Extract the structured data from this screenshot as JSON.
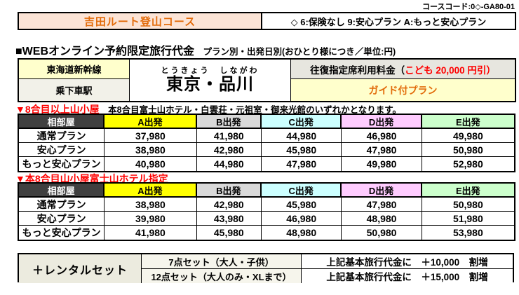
{
  "page": {
    "course_code": "コースコード:0◇-GA80-01"
  },
  "title_bar": {
    "course_name": "吉田ルート登山コース",
    "plan_legend": "◇ 6:保険なし 9:安心プラン A:もっと安心プラン"
  },
  "section": {
    "heading_main": "■WEBオンライン予約限定旅行代金",
    "heading_sub": "　プラン別・出発日別(おひとり様につき／単位:円)"
  },
  "station_info": {
    "line_name": "東海道新幹線",
    "station_row_label": "乗下車駅",
    "station_furigana": "とうきょう　しながわ",
    "station_names": "東京・品川",
    "seat_fee_label": "往復指定席利用料金（",
    "seat_fee_note": "こども 20,000 円引）",
    "guide_plan": "ガイド付プラン"
  },
  "price_tables": [
    {
      "heading_red": "▼8合目以上山小屋",
      "heading_note": "　本8合目富士山ホテル・白雲荘・元祖室・御来光館のいずれかとなります。",
      "columns": [
        "相部屋",
        "A出発",
        "B出発",
        "C出発",
        "D出発",
        "E出発"
      ],
      "rows": [
        {
          "label": "通常プラン",
          "values": [
            "37,980",
            "41,980",
            "44,980",
            "46,980",
            "49,980"
          ]
        },
        {
          "label": "安心プラン",
          "values": [
            "38,980",
            "42,980",
            "45,980",
            "47,980",
            "50,980"
          ]
        },
        {
          "label": "もっと安心プラン",
          "values": [
            "40,980",
            "44,980",
            "47,980",
            "49,980",
            "52,980"
          ]
        }
      ]
    },
    {
      "heading_red": "▼本8合目山小屋富士山ホテル指定",
      "heading_note": "",
      "columns": [
        "相部屋",
        "A出発",
        "B出発",
        "C出発",
        "D出発",
        "E出発"
      ],
      "rows": [
        {
          "label": "通常プラン",
          "values": [
            "38,980",
            "42,980",
            "45,980",
            "47,980",
            "50,980"
          ]
        },
        {
          "label": "安心プラン",
          "values": [
            "39,980",
            "43,980",
            "46,980",
            "48,980",
            "51,980"
          ]
        },
        {
          "label": "もっと安心プラン",
          "values": [
            "41,980",
            "45,980",
            "48,980",
            "50,980",
            "53,980"
          ]
        }
      ]
    }
  ],
  "rental": {
    "label": "＋レンタルセット",
    "rows": [
      {
        "set_name": "7点セット（大人・子供）",
        "surcharge": "上記基本旅行代金に　＋10,000　割増"
      },
      {
        "set_name": "12点セット（大人のみ・XLまで）",
        "surcharge": "上記基本旅行代金に　＋15,000　割増"
      }
    ]
  },
  "colors": {
    "accent_orange": "#e26b0a",
    "warning_red": "#ff0000",
    "title_bg": "#fce4d6",
    "yellow_bg": "#ffffcc",
    "col_a_bg": "#ffff00",
    "col_b_bg": "#d9d9d9",
    "col_c_bg": "#ccffff",
    "col_d_bg": "#ffccff",
    "col_e_bg": "#ccffcc",
    "header_dark_bg": "#404040"
  }
}
